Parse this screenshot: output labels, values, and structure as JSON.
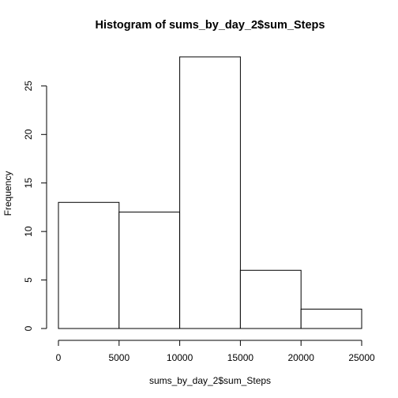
{
  "chart_data": {
    "type": "bar",
    "title": "Histogram of sums_by_day_2$sum_Steps",
    "xlabel": "sums_by_day_2$sum_Steps",
    "ylabel": "Frequency",
    "bins": [
      {
        "start": 0,
        "end": 5000,
        "count": 13
      },
      {
        "start": 5000,
        "end": 10000,
        "count": 12
      },
      {
        "start": 10000,
        "end": 15000,
        "count": 28
      },
      {
        "start": 15000,
        "end": 20000,
        "count": 6
      },
      {
        "start": 20000,
        "end": 25000,
        "count": 2
      }
    ],
    "xlim": [
      0,
      25000
    ],
    "ylim": [
      0,
      28
    ],
    "x_ticks": [
      0,
      5000,
      10000,
      15000,
      20000,
      25000
    ],
    "y_ticks": [
      0,
      5,
      10,
      15,
      20,
      25
    ],
    "grid": false,
    "legend": "none",
    "bar_fill": "#ffffff",
    "bar_stroke": "#000000"
  }
}
